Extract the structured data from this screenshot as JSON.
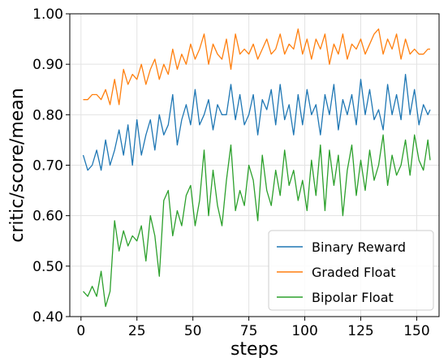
{
  "chart_data": {
    "type": "line",
    "xlabel": "steps",
    "ylabel": "critic/score/mean",
    "xlim": [
      -5,
      160
    ],
    "ylim": [
      0.4,
      1.0
    ],
    "xticks": [
      "0",
      "25",
      "50",
      "75",
      "100",
      "125",
      "150"
    ],
    "yticks": [
      "0.40",
      "0.50",
      "0.60",
      "0.70",
      "0.80",
      "0.90",
      "1.00"
    ],
    "grid": true,
    "legend_position": "bottom-right",
    "series": [
      {
        "name": "Binary Reward",
        "color": "#1f77b4",
        "x": [
          1,
          3,
          5,
          7,
          9,
          11,
          13,
          15,
          17,
          19,
          21,
          23,
          25,
          27,
          29,
          31,
          33,
          35,
          37,
          39,
          41,
          43,
          45,
          47,
          49,
          51,
          53,
          55,
          57,
          59,
          61,
          63,
          65,
          67,
          69,
          71,
          73,
          75,
          77,
          79,
          81,
          83,
          85,
          87,
          89,
          91,
          93,
          95,
          97,
          99,
          101,
          103,
          105,
          107,
          109,
          111,
          113,
          115,
          117,
          119,
          121,
          123,
          125,
          127,
          129,
          131,
          133,
          135,
          137,
          139,
          141,
          143,
          145,
          147,
          149,
          151,
          153,
          155,
          156
        ],
        "y": [
          0.72,
          0.69,
          0.7,
          0.73,
          0.69,
          0.75,
          0.7,
          0.73,
          0.77,
          0.72,
          0.78,
          0.7,
          0.79,
          0.72,
          0.76,
          0.79,
          0.73,
          0.8,
          0.76,
          0.78,
          0.84,
          0.74,
          0.79,
          0.82,
          0.78,
          0.85,
          0.78,
          0.8,
          0.83,
          0.77,
          0.82,
          0.8,
          0.8,
          0.86,
          0.79,
          0.84,
          0.78,
          0.8,
          0.84,
          0.76,
          0.83,
          0.81,
          0.85,
          0.78,
          0.86,
          0.79,
          0.82,
          0.76,
          0.84,
          0.78,
          0.85,
          0.8,
          0.82,
          0.76,
          0.84,
          0.8,
          0.86,
          0.77,
          0.83,
          0.8,
          0.84,
          0.78,
          0.87,
          0.8,
          0.85,
          0.79,
          0.81,
          0.77,
          0.86,
          0.8,
          0.84,
          0.79,
          0.88,
          0.8,
          0.85,
          0.78,
          0.82,
          0.8,
          0.81
        ]
      },
      {
        "name": "Graded Float",
        "color": "#ff7f0e",
        "x": [
          1,
          3,
          5,
          7,
          9,
          11,
          13,
          15,
          17,
          19,
          21,
          23,
          25,
          27,
          29,
          31,
          33,
          35,
          37,
          39,
          41,
          43,
          45,
          47,
          49,
          51,
          53,
          55,
          57,
          59,
          61,
          63,
          65,
          67,
          69,
          71,
          73,
          75,
          77,
          79,
          81,
          83,
          85,
          87,
          89,
          91,
          93,
          95,
          97,
          99,
          101,
          103,
          105,
          107,
          109,
          111,
          113,
          115,
          117,
          119,
          121,
          123,
          125,
          127,
          129,
          131,
          133,
          135,
          137,
          139,
          141,
          143,
          145,
          147,
          149,
          151,
          153,
          155,
          156
        ],
        "y": [
          0.83,
          0.83,
          0.84,
          0.84,
          0.83,
          0.85,
          0.82,
          0.87,
          0.82,
          0.89,
          0.86,
          0.88,
          0.87,
          0.9,
          0.86,
          0.89,
          0.91,
          0.87,
          0.9,
          0.88,
          0.93,
          0.89,
          0.92,
          0.9,
          0.94,
          0.91,
          0.93,
          0.96,
          0.9,
          0.94,
          0.92,
          0.91,
          0.95,
          0.89,
          0.96,
          0.92,
          0.93,
          0.92,
          0.94,
          0.91,
          0.93,
          0.95,
          0.92,
          0.93,
          0.96,
          0.92,
          0.94,
          0.93,
          0.97,
          0.92,
          0.95,
          0.91,
          0.95,
          0.93,
          0.96,
          0.9,
          0.94,
          0.92,
          0.96,
          0.91,
          0.94,
          0.93,
          0.95,
          0.92,
          0.94,
          0.96,
          0.97,
          0.92,
          0.95,
          0.93,
          0.96,
          0.91,
          0.95,
          0.92,
          0.93,
          0.92,
          0.92,
          0.93,
          0.93
        ]
      },
      {
        "name": "Bipolar Float",
        "color": "#2ca02c",
        "x": [
          1,
          3,
          5,
          7,
          9,
          11,
          13,
          15,
          17,
          19,
          21,
          23,
          25,
          27,
          29,
          31,
          33,
          35,
          37,
          39,
          41,
          43,
          45,
          47,
          49,
          51,
          53,
          55,
          57,
          59,
          61,
          63,
          65,
          67,
          69,
          71,
          73,
          75,
          77,
          79,
          81,
          83,
          85,
          87,
          89,
          91,
          93,
          95,
          97,
          99,
          101,
          103,
          105,
          107,
          109,
          111,
          113,
          115,
          117,
          119,
          121,
          123,
          125,
          127,
          129,
          131,
          133,
          135,
          137,
          139,
          141,
          143,
          145,
          147,
          149,
          151,
          153,
          155,
          156
        ],
        "y": [
          0.45,
          0.44,
          0.46,
          0.44,
          0.49,
          0.42,
          0.45,
          0.59,
          0.53,
          0.57,
          0.54,
          0.56,
          0.55,
          0.58,
          0.51,
          0.6,
          0.56,
          0.48,
          0.63,
          0.65,
          0.56,
          0.61,
          0.58,
          0.64,
          0.66,
          0.58,
          0.63,
          0.73,
          0.6,
          0.69,
          0.62,
          0.58,
          0.67,
          0.74,
          0.61,
          0.65,
          0.62,
          0.7,
          0.67,
          0.59,
          0.72,
          0.65,
          0.62,
          0.69,
          0.64,
          0.73,
          0.66,
          0.69,
          0.63,
          0.67,
          0.61,
          0.71,
          0.64,
          0.74,
          0.61,
          0.73,
          0.66,
          0.72,
          0.6,
          0.69,
          0.74,
          0.64,
          0.71,
          0.65,
          0.73,
          0.67,
          0.7,
          0.76,
          0.66,
          0.72,
          0.68,
          0.7,
          0.75,
          0.68,
          0.76,
          0.71,
          0.69,
          0.75,
          0.71
        ]
      }
    ]
  }
}
